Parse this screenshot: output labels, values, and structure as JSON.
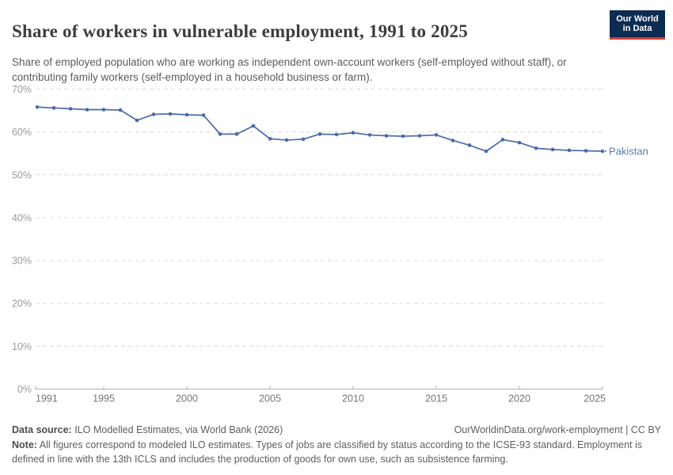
{
  "header": {
    "title": "Share of workers in vulnerable employment, 1991 to 2025",
    "subtitle": "Share of employed population who are working as independent own-account workers (self-employed without staff), or contributing family workers (self-employed in a household business or farm).",
    "logo": {
      "line1": "Our World",
      "line2": "in Data",
      "bg": "#0d2c52",
      "accent": "#d93a34"
    }
  },
  "chart_data": {
    "type": "line",
    "title": "Share of workers in vulnerable employment, 1991 to 2025",
    "x": [
      1991,
      1992,
      1993,
      1994,
      1995,
      1996,
      1997,
      1998,
      1999,
      2000,
      2001,
      2002,
      2003,
      2004,
      2005,
      2006,
      2007,
      2008,
      2009,
      2010,
      2011,
      2012,
      2013,
      2014,
      2015,
      2016,
      2017,
      2018,
      2019,
      2020,
      2021,
      2022,
      2023,
      2024,
      2025
    ],
    "series": [
      {
        "name": "Pakistan",
        "values": [
          65.8,
          65.6,
          65.4,
          65.2,
          65.2,
          65.1,
          62.7,
          64.1,
          64.2,
          64.0,
          63.9,
          59.5,
          59.5,
          61.4,
          58.4,
          58.1,
          58.3,
          59.5,
          59.4,
          59.8,
          59.3,
          59.1,
          59.0,
          59.1,
          59.3,
          58.0,
          56.9,
          55.5,
          58.2,
          57.5,
          56.2,
          55.9,
          55.7,
          55.6,
          55.5
        ]
      }
    ],
    "end_label": "Pakistan",
    "ylim": [
      0,
      70
    ],
    "yticks": [
      0,
      10,
      20,
      30,
      40,
      50,
      60,
      70
    ],
    "ytick_suffix": "%",
    "xticks": [
      1991,
      1995,
      2000,
      2005,
      2010,
      2015,
      2020,
      2025
    ],
    "grid": "horizontal-dashed",
    "legend_position": "end-of-line"
  },
  "colors": {
    "line": "#4a6ba8",
    "end_label": "#5b79a8",
    "grid": "#dcdcdc",
    "axis": "#b3b3b3",
    "ytick_label": "#9b9b9b",
    "xtick_label": "#757575"
  },
  "footer": {
    "source_label": "Data source:",
    "source_text": " ILO Modelled Estimates, via World Bank (2026)",
    "rights": "OurWorldinData.org/work-employment | CC BY",
    "note_label": "Note:",
    "note_text": " All figures correspond to modeled ILO estimates. Types of jobs are classified by status according to the ICSE-93 standard. Employment is defined in line with the 13th ICLS and includes the production of goods for own use, such as subsistence farming."
  }
}
